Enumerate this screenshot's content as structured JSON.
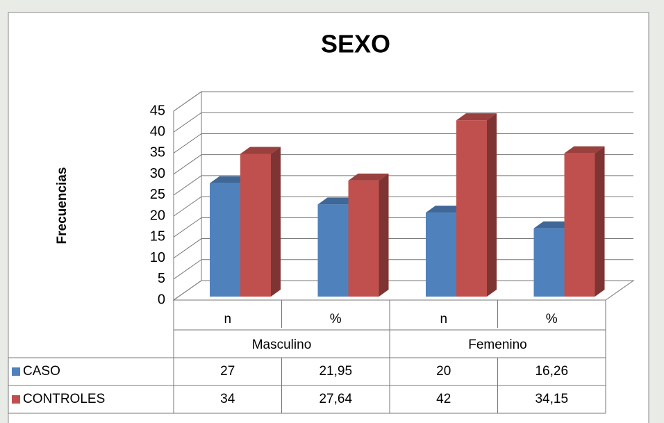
{
  "chart_data": {
    "type": "bar3d",
    "title": "SEXO",
    "y_label": "Frecuencias",
    "categories": [
      "n",
      "%",
      "n",
      "%"
    ],
    "groups": [
      "Masculino",
      "Femenino"
    ],
    "series": [
      {
        "name": "CASO",
        "color": "#4f81bd",
        "values": [
          27,
          21.95,
          20,
          16.26
        ],
        "value_labels": [
          "27",
          "21,95",
          "20",
          "16,26"
        ]
      },
      {
        "name": "CONTROLES",
        "color": "#c0504d",
        "values": [
          34,
          27.64,
          42,
          34.15
        ],
        "value_labels": [
          "34",
          "27,64",
          "42",
          "34,15"
        ]
      }
    ],
    "ylim": [
      0,
      45
    ],
    "yticks": [
      0,
      5,
      10,
      15,
      20,
      25,
      30,
      35,
      40,
      45
    ],
    "grid": true
  }
}
